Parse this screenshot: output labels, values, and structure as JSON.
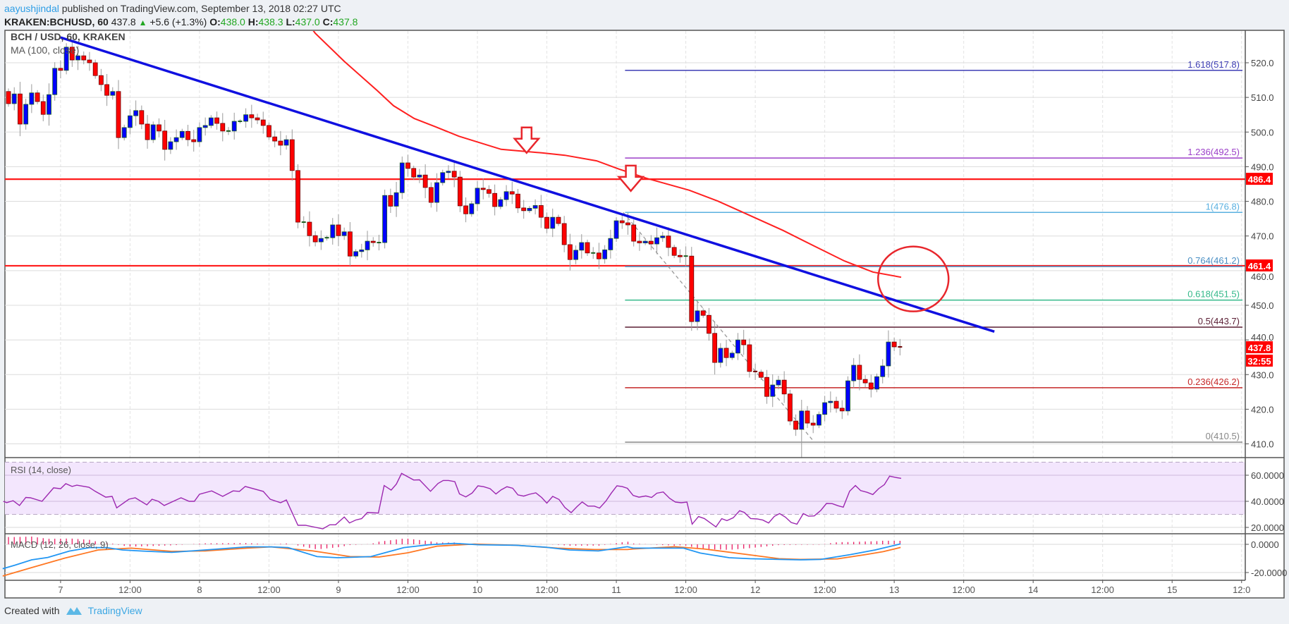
{
  "header": {
    "author": "aayushjindal",
    "published": "published on TradingView.com, September 13, 2018 02:27 UTC",
    "symbol": "KRAKEN:BCHUSD, 60",
    "last": "437.8",
    "change": "+5.6 (+1.3%)",
    "o_label": "O:",
    "o": "438.0",
    "h_label": "H:",
    "h": "438.3",
    "l_label": "L:",
    "l": "437.0",
    "c_label": "C:",
    "c": "437.8"
  },
  "footer": {
    "created_with": "Created with",
    "brand": "TradingView"
  },
  "chart_data": {
    "type": "candlestick",
    "title": "BCH / USD, 60, KRAKEN",
    "ma_label": "MA (100, close)",
    "first_candle_hour": -9,
    "hour_zero": "Sep 7 00:00",
    "price_axis": {
      "ylim": [
        403,
        531
      ],
      "ticks": [
        "410.0",
        "420.0",
        "430.0",
        "440.0",
        "450.0",
        "460.0",
        "470.0",
        "480.0",
        "490.0",
        "500.0",
        "510.0",
        "520.0"
      ]
    },
    "time_axis": [
      {
        "label": "7",
        "hour": 0
      },
      {
        "label": "12:00",
        "hour": 12
      },
      {
        "label": "8",
        "hour": 24
      },
      {
        "label": "12:00",
        "hour": 36
      },
      {
        "label": "9",
        "hour": 48
      },
      {
        "label": "12:00",
        "hour": 60
      },
      {
        "label": "10",
        "hour": 72
      },
      {
        "label": "12:00",
        "hour": 84
      },
      {
        "label": "11",
        "hour": 96
      },
      {
        "label": "12:00",
        "hour": 108
      },
      {
        "label": "12",
        "hour": 120
      },
      {
        "label": "12:00",
        "hour": 132
      },
      {
        "label": "13",
        "hour": 144
      },
      {
        "label": "12:00",
        "hour": 156
      },
      {
        "label": "14",
        "hour": 168
      },
      {
        "label": "12:00",
        "hour": 180
      },
      {
        "label": "15",
        "hour": 192
      },
      {
        "label": "12:0",
        "hour": 204
      }
    ],
    "first_open": 511.7,
    "closes": [
      508.2,
      511,
      502.3,
      508,
      511.3,
      508.8,
      505.1,
      510.8,
      518.4,
      517.8,
      524.5,
      520.8,
      522,
      520.8,
      520,
      516.3,
      513.7,
      510.6,
      511.7,
      498.4,
      501.3,
      504.7,
      506.2,
      502.3,
      497.8,
      502.1,
      500.3,
      495,
      497.2,
      498.4,
      500.2,
      497.8,
      497.2,
      501.3,
      501.9,
      504.1,
      502.5,
      500.3,
      500.3,
      503.1,
      503.1,
      505,
      504.1,
      503.5,
      501.9,
      498.6,
      497.4,
      496.2,
      497.8,
      488.9,
      474,
      474,
      470.1,
      468.3,
      469.3,
      469.5,
      473.2,
      470.1,
      471.2,
      464.2,
      465.5,
      466,
      468.5,
      468.1,
      468.1,
      481.7,
      478.6,
      482.5,
      491.1,
      489.5,
      487,
      487.6,
      484,
      479.7,
      485.4,
      488.3,
      488.7,
      487,
      478.7,
      476.4,
      479.3,
      483.8,
      483.4,
      482.3,
      478.5,
      480.5,
      482.8,
      482.1,
      478.1,
      477.3,
      478,
      478.8,
      475.4,
      472.2,
      475.4,
      473.6,
      467.5,
      463.2,
      465.9,
      468.1,
      465.1,
      465.1,
      463.4,
      466,
      469.3,
      474.4,
      473.8,
      473.2,
      468.5,
      468,
      468.5,
      467.7,
      469.5,
      470,
      466.7,
      464.4,
      464,
      464.2,
      445.3,
      448.4,
      447.1,
      441.9,
      433.5,
      437.6,
      434.9,
      436.2,
      440,
      438.6,
      430.9,
      430.7,
      429.2,
      423.7,
      427,
      428.4,
      424.4,
      416.6,
      414.2,
      419.5,
      416,
      415.4,
      418.5,
      421.9,
      422.3,
      420.3,
      419.5,
      428.2,
      432.7,
      428.6,
      427.6,
      425.8,
      429.4,
      432.5,
      439.4,
      438,
      437.8
    ],
    "ma100": [
      [
        42.9,
        531
      ],
      [
        44,
        528.5
      ],
      [
        49,
        520.4
      ],
      [
        54.6,
        512.1
      ],
      [
        57.5,
        507.6
      ],
      [
        61.1,
        503.9
      ],
      [
        64.8,
        501.5
      ],
      [
        68.8,
        498.8
      ],
      [
        76.1,
        495
      ],
      [
        83.1,
        494
      ],
      [
        87.1,
        493.3
      ],
      [
        92.6,
        491.7
      ],
      [
        96.5,
        489.3
      ],
      [
        101.3,
        486.6
      ],
      [
        108.6,
        483.2
      ],
      [
        113.5,
        480.1
      ],
      [
        117.5,
        477.1
      ],
      [
        124.8,
        471.6
      ],
      [
        130.2,
        467.1
      ],
      [
        135.4,
        462.8
      ],
      [
        140.3,
        459.6
      ],
      [
        145.2,
        458.1
      ]
    ],
    "trendline": [
      [
        0,
        527.3
      ],
      [
        161.3,
        442.4
      ]
    ],
    "fib_swing_line": [
      [
        97.2,
        476.8
      ],
      [
        130.2,
        410.5
      ]
    ],
    "horizontal_levels": [
      {
        "price": 486.4,
        "label": "486.4"
      },
      {
        "price": 461.4,
        "label": "461.4"
      }
    ],
    "fib_start_hour": 97.5,
    "fib_levels": [
      {
        "ratio": "1.618",
        "price": 517.8,
        "label": "1.618(517.8)",
        "color": "#3f3fb5"
      },
      {
        "ratio": "1.236",
        "price": 492.5,
        "label": "1.236(492.5)",
        "color": "#9b3fc8"
      },
      {
        "ratio": "1",
        "price": 476.8,
        "label": "1(476.8)",
        "color": "#5ab0e0"
      },
      {
        "ratio": "0.764",
        "price": 461.2,
        "label": "0.764(461.2)",
        "color": "#4a8fc4"
      },
      {
        "ratio": "0.618",
        "price": 451.5,
        "label": "0.618(451.5)",
        "color": "#34b98a"
      },
      {
        "ratio": "0.5",
        "price": 443.7,
        "label": "0.5(443.7)",
        "color": "#5a1e34"
      },
      {
        "ratio": "0.236",
        "price": 426.2,
        "label": "0.236(426.2)",
        "color": "#c62828"
      },
      {
        "ratio": "0",
        "price": 410.5,
        "label": "0(410.5)",
        "color": "#888888"
      }
    ],
    "annotations": {
      "down_arrows": [
        [
          80.5,
          494
        ],
        [
          98.5,
          483
        ]
      ],
      "circle": {
        "hour": 147.3,
        "price": 457.6
      }
    },
    "last_price_label": "437.8",
    "countdown": "32:55",
    "colors": {
      "up": "#0000ff",
      "down": "#ff0000",
      "ma": "#ff2020",
      "trend": "#1010e0",
      "level": "#ff1a1a",
      "rsi": "#9c27b0",
      "macd": "#2196f3",
      "signal": "#ff7722",
      "hist": "#e91e63"
    },
    "rsi": {
      "label": "RSI (14, close)",
      "ticks": [
        "60.0000",
        "40.0000",
        "20.0000"
      ],
      "bands": [
        70,
        30
      ],
      "values": [
        [
          -9.9,
          40
        ],
        [
          -9.3,
          39
        ],
        [
          -8.2,
          40.5
        ],
        [
          -7.1,
          36.8
        ],
        [
          -6,
          43
        ],
        [
          -5.2,
          42.7
        ],
        [
          -3.2,
          40
        ],
        [
          -1.2,
          50.3
        ],
        [
          0,
          49.7
        ],
        [
          0.9,
          53.5
        ],
        [
          2,
          51.4
        ],
        [
          2.8,
          52.4
        ],
        [
          4.9,
          50.8
        ],
        [
          6,
          47.6
        ],
        [
          7.8,
          43.2
        ],
        [
          8.9,
          43.8
        ],
        [
          9.7,
          35
        ],
        [
          11.8,
          41.6
        ],
        [
          12.9,
          42.7
        ],
        [
          14.9,
          37.3
        ],
        [
          15.8,
          41.6
        ],
        [
          16.9,
          40
        ],
        [
          17.9,
          36.8
        ],
        [
          20.8,
          42.7
        ],
        [
          22.2,
          40
        ],
        [
          23.1,
          40
        ],
        [
          24,
          45.4
        ],
        [
          26.1,
          48
        ],
        [
          28,
          43.8
        ],
        [
          29.8,
          48
        ],
        [
          30.9,
          47.6
        ],
        [
          31.9,
          51.4
        ],
        [
          35,
          47.6
        ],
        [
          36.2,
          41.6
        ],
        [
          38,
          38.9
        ],
        [
          39,
          41
        ],
        [
          41,
          21.6
        ],
        [
          42.3,
          21.6
        ],
        [
          45.3,
          18.9
        ],
        [
          46.5,
          22
        ],
        [
          47.5,
          22
        ],
        [
          49,
          28
        ],
        [
          49.9,
          23.4
        ],
        [
          51,
          25.7
        ],
        [
          52,
          26.7
        ],
        [
          53,
          31.4
        ],
        [
          54.9,
          31
        ],
        [
          55.9,
          52.1
        ],
        [
          57.1,
          48.6
        ],
        [
          58,
          53.2
        ],
        [
          58.9,
          61.4
        ],
        [
          61,
          56.3
        ],
        [
          62,
          56.5
        ],
        [
          63.9,
          47.7
        ],
        [
          65.2,
          53.7
        ],
        [
          66.1,
          56
        ],
        [
          67,
          56
        ],
        [
          68.1,
          55.1
        ],
        [
          68.9,
          45.7
        ],
        [
          70,
          43.4
        ],
        [
          71.1,
          46.4
        ],
        [
          72.1,
          51.9
        ],
        [
          73.1,
          51.2
        ],
        [
          74.2,
          49.7
        ],
        [
          75.2,
          45.6
        ],
        [
          76.1,
          48.8
        ],
        [
          77.1,
          51.2
        ],
        [
          78.1,
          50
        ],
        [
          79,
          44.9
        ],
        [
          80,
          44
        ],
        [
          81,
          45.4
        ],
        [
          82.1,
          46.5
        ],
        [
          83.1,
          42.9
        ],
        [
          84,
          38.6
        ],
        [
          85,
          43.8
        ],
        [
          86.1,
          41.4
        ],
        [
          87.1,
          35.3
        ],
        [
          88.2,
          31.3
        ],
        [
          89.2,
          35.9
        ],
        [
          90.1,
          39.5
        ],
        [
          91.1,
          36.3
        ],
        [
          92.2,
          36.3
        ],
        [
          93.1,
          34.8
        ],
        [
          94.2,
          40.2
        ],
        [
          95.1,
          46.1
        ],
        [
          96.1,
          51.9
        ],
        [
          97,
          51.3
        ],
        [
          97.9,
          50
        ],
        [
          98.9,
          44.5
        ],
        [
          99.9,
          43.2
        ],
        [
          101.1,
          44.1
        ],
        [
          102.1,
          43
        ],
        [
          103,
          46.2
        ],
        [
          104.1,
          47.2
        ],
        [
          105.2,
          42.3
        ],
        [
          106.2,
          39.4
        ],
        [
          107.2,
          38.9
        ],
        [
          108.2,
          39.4
        ],
        [
          109.1,
          22.5
        ],
        [
          110.2,
          28.3
        ],
        [
          111.2,
          26.8
        ],
        [
          113.2,
          20.4
        ],
        [
          114.2,
          26.7
        ],
        [
          115.1,
          25.2
        ],
        [
          116.2,
          27.4
        ],
        [
          117.3,
          32.8
        ],
        [
          118.1,
          31.5
        ],
        [
          119.2,
          26.8
        ],
        [
          120.3,
          26.5
        ],
        [
          121.3,
          25.6
        ],
        [
          122.3,
          23.4
        ],
        [
          123.3,
          28.5
        ],
        [
          124.2,
          30.6
        ],
        [
          125.2,
          27.9
        ],
        [
          126.2,
          23.8
        ],
        [
          127.2,
          22.5
        ],
        [
          128.3,
          30.6
        ],
        [
          129.2,
          28.6
        ],
        [
          130.2,
          28.8
        ],
        [
          131.3,
          33
        ],
        [
          132.3,
          38.4
        ],
        [
          133.3,
          38.2
        ],
        [
          134.3,
          36.6
        ],
        [
          135.2,
          35.5
        ],
        [
          136.3,
          47.8
        ],
        [
          137.3,
          52.1
        ],
        [
          138.2,
          48.2
        ],
        [
          139.3,
          46.9
        ],
        [
          140.3,
          45.2
        ],
        [
          141.3,
          49.7
        ],
        [
          142.3,
          52.8
        ],
        [
          143.2,
          59.3
        ],
        [
          144.2,
          58.3
        ],
        [
          145.2,
          57.6
        ]
      ]
    },
    "macd": {
      "label": "MACD (12, 26, close, 9)",
      "ticks": [
        "0.0000",
        "-20.0000"
      ],
      "macd": [
        [
          -10,
          -17.3
        ],
        [
          -7.9,
          -14.8
        ],
        [
          -5,
          -11
        ],
        [
          -2.2,
          -9.3
        ],
        [
          1.5,
          -4.8
        ],
        [
          5,
          -2.3
        ],
        [
          7.9,
          -2.3
        ],
        [
          10.7,
          -4
        ],
        [
          14.3,
          -4.8
        ],
        [
          19.2,
          -5.7
        ],
        [
          25,
          -4
        ],
        [
          32.2,
          -1.8
        ],
        [
          36.4,
          -1.8
        ],
        [
          39.3,
          -2.3
        ],
        [
          44.3,
          -8.7
        ],
        [
          47.9,
          -9.5
        ],
        [
          53.6,
          -8.7
        ],
        [
          59.3,
          -2.3
        ],
        [
          63.6,
          -0.3
        ],
        [
          68,
          0.7
        ],
        [
          72.2,
          -0.3
        ],
        [
          78.7,
          -0.7
        ],
        [
          83.7,
          -2
        ],
        [
          87.9,
          -4
        ],
        [
          92.9,
          -4.7
        ],
        [
          97.9,
          -1.7
        ],
        [
          98.9,
          -2.7
        ],
        [
          107.6,
          -2.7
        ],
        [
          110.5,
          -6.2
        ],
        [
          115.5,
          -9.5
        ],
        [
          119.1,
          -10.2
        ],
        [
          124.1,
          -10.7
        ],
        [
          127.8,
          -11
        ],
        [
          131.3,
          -10.7
        ],
        [
          136.4,
          -7.3
        ],
        [
          140.7,
          -4
        ],
        [
          145.1,
          0.3
        ]
      ],
      "signal": [
        [
          -10,
          -22.5
        ],
        [
          -5,
          -16.5
        ],
        [
          0.7,
          -9.8
        ],
        [
          6.5,
          -4
        ],
        [
          12.2,
          -2.7
        ],
        [
          19.2,
          -5
        ],
        [
          25,
          -4.7
        ],
        [
          32.2,
          -2.7
        ],
        [
          36.4,
          -1.8
        ],
        [
          43.6,
          -4.7
        ],
        [
          50,
          -8.7
        ],
        [
          55,
          -9
        ],
        [
          60,
          -6
        ],
        [
          65,
          -1.3
        ],
        [
          71.5,
          0.2
        ],
        [
          78.7,
          -0.7
        ],
        [
          85.8,
          -2.7
        ],
        [
          92.2,
          -3.7
        ],
        [
          97.9,
          -3.7
        ],
        [
          98.9,
          -3.3
        ],
        [
          106.1,
          -1.7
        ],
        [
          111.2,
          -3.3
        ],
        [
          119.1,
          -7.5
        ],
        [
          124.1,
          -10.2
        ],
        [
          127.8,
          -10.7
        ],
        [
          134.2,
          -10.3
        ],
        [
          139.2,
          -7.2
        ],
        [
          142.1,
          -5.2
        ],
        [
          145.1,
          -2.2
        ]
      ]
    }
  }
}
